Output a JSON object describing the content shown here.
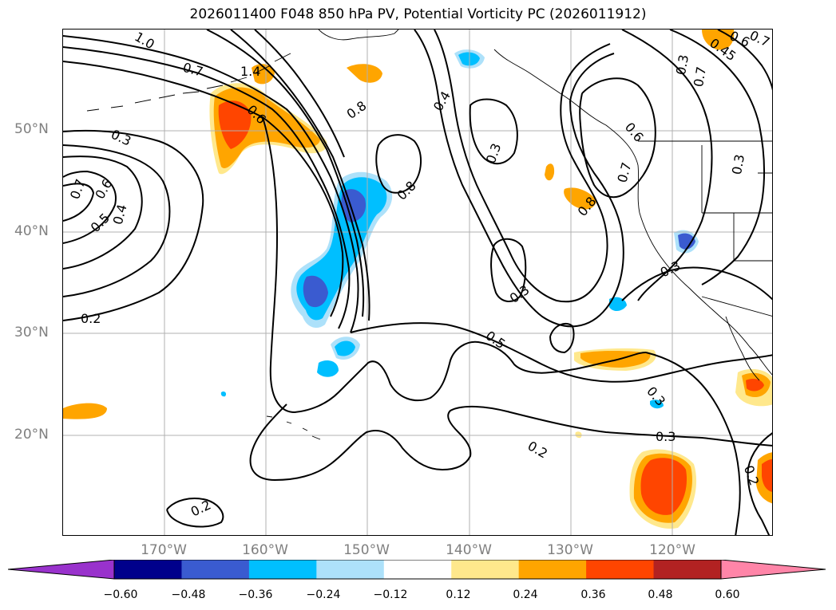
{
  "title": "2026011400 F048 850 hPa PV, Potential Vorticity PC (2026011912)",
  "lat_labels": [
    "50°N",
    "40°N",
    "30°N",
    "20°N"
  ],
  "lon_labels": [
    "170°W",
    "160°W",
    "150°W",
    "140°W",
    "130°W",
    "120°W"
  ],
  "contour_labels": [
    "1.0",
    "0.7",
    "1.4",
    "0.6",
    "0.8",
    "0.3",
    "0.7",
    "0.6",
    "0.5",
    "0.4",
    "0.8",
    "0.4",
    "0.3",
    "0.6",
    "0.7",
    "0.8",
    "0.3",
    "0.3",
    "0.5",
    "0.2",
    "0.2",
    "0.3",
    "0.3",
    "0.2",
    "0.2",
    "0.45",
    "0.6",
    "0.7",
    "0.3",
    "0.7",
    "0.3"
  ],
  "colorbar": {
    "ticks": [
      "−0.60",
      "−0.48",
      "−0.36",
      "−0.24",
      "−0.12",
      "0.12",
      "0.24",
      "0.36",
      "0.48",
      "0.60"
    ],
    "colors": [
      "#9932CC",
      "#00008B",
      "#3A5BD0",
      "#00BFFF",
      "#ADE1FA",
      "#FFFFFF",
      "#FFE88C",
      "#FFA500",
      "#FF4500",
      "#B22222",
      "#FF85A8"
    ]
  }
}
